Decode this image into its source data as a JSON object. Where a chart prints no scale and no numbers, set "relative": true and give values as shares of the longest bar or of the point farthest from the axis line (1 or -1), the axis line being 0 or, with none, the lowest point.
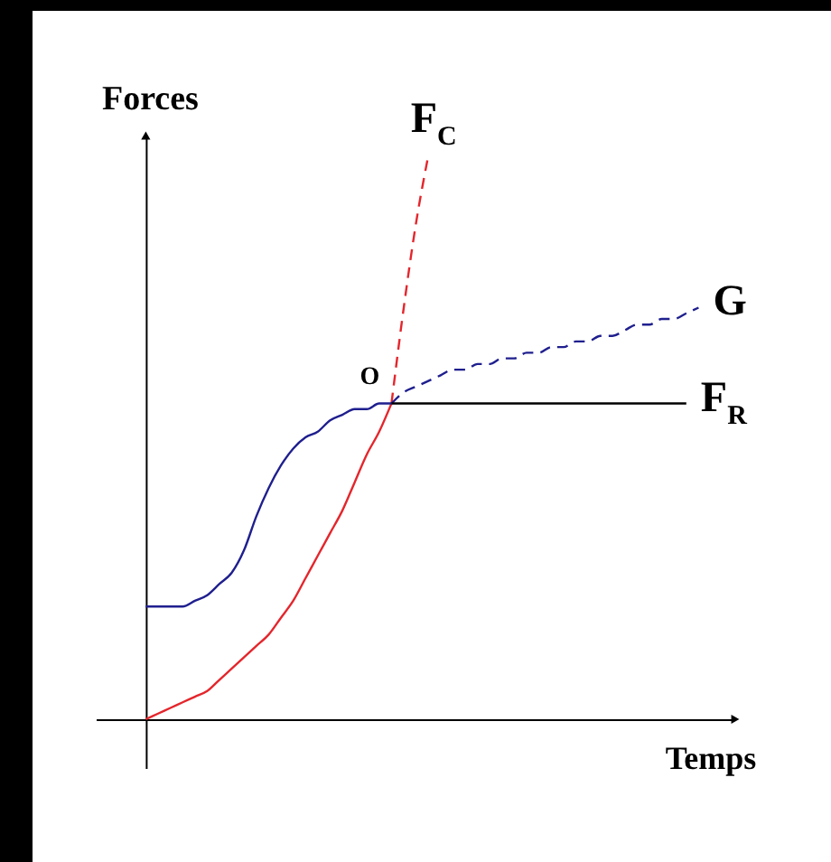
{
  "chart_data": {
    "type": "line",
    "relative": true,
    "xlabel": "Temps",
    "ylabel": "Forces",
    "line_style": "solid",
    "categories": [
      null,
      null,
      null,
      null,
      null,
      null,
      null,
      null,
      null,
      null,
      null,
      null,
      null,
      null,
      null,
      null,
      null,
      null,
      null,
      null,
      null,
      null,
      null,
      null,
      null,
      null,
      null,
      null,
      null,
      null,
      null,
      null,
      null,
      null,
      null,
      null,
      null,
      null,
      null,
      null,
      null,
      null,
      null,
      null,
      null,
      null
    ],
    "series": [
      {
        "color": "#e4262c",
        "values": [
          0,
          0.01,
          0.02,
          0.03,
          0.04,
          0.05,
          0.07,
          0.09,
          0.11,
          0.13,
          0.15,
          0.18,
          0.21,
          0.25,
          0.29,
          0.33,
          0.37,
          0.42,
          0.47,
          0.51,
          0.56,
          null,
          null,
          null,
          null,
          null,
          null,
          null,
          null,
          null,
          null,
          null,
          null,
          null,
          null,
          null,
          null,
          null,
          null,
          null,
          null,
          null,
          null,
          null,
          null,
          null
        ]
      },
      {
        "name": "F$_{C}$",
        "color": "#e4262c",
        "line_style": "dashed",
        "values": [
          null,
          null,
          null,
          null,
          null,
          null,
          null,
          null,
          null,
          null,
          null,
          null,
          null,
          null,
          null,
          null,
          null,
          null,
          null,
          null,
          0.56,
          0.73,
          0.88,
          1,
          null,
          null,
          null,
          null,
          null,
          null,
          null,
          null,
          null,
          null,
          null,
          null,
          null,
          null,
          null,
          null,
          null,
          null,
          null,
          null,
          null,
          null
        ]
      },
      {
        "color": "#1f1f8f",
        "values": [
          0.2,
          0.2,
          0.2,
          0.2,
          0.21,
          0.22,
          0.24,
          0.26,
          0.3,
          0.36,
          0.41,
          0.45,
          0.48,
          0.5,
          0.51,
          0.53,
          0.54,
          0.55,
          0.55,
          0.56,
          0.56,
          null,
          null,
          null,
          null,
          null,
          null,
          null,
          null,
          null,
          null,
          null,
          null,
          null,
          null,
          null,
          null,
          null,
          null,
          null,
          null,
          null,
          null,
          null,
          null,
          null
        ]
      },
      {
        "name": "G",
        "color": "#1f1f8f",
        "line_style": "dashed",
        "values": [
          null,
          null,
          null,
          null,
          null,
          null,
          null,
          null,
          null,
          null,
          null,
          null,
          null,
          null,
          null,
          null,
          null,
          null,
          null,
          null,
          0.56,
          0.58,
          0.59,
          0.6,
          0.61,
          0.62,
          0.62,
          0.63,
          0.63,
          0.64,
          0.64,
          0.65,
          0.65,
          0.66,
          0.66,
          0.67,
          0.67,
          0.68,
          0.68,
          0.69,
          0.7,
          0.7,
          0.71,
          0.71,
          0.72,
          0.73
        ]
      },
      {
        "name": "F$_{R}$",
        "color": "#000000",
        "values": [
          null,
          null,
          null,
          null,
          null,
          null,
          null,
          null,
          null,
          null,
          null,
          null,
          null,
          null,
          null,
          null,
          null,
          null,
          null,
          null,
          0.56,
          0.56,
          0.56,
          0.56,
          0.56,
          0.56,
          0.56,
          0.56,
          0.56,
          0.56,
          0.56,
          0.56,
          0.56,
          0.56,
          0.56,
          0.56,
          0.56,
          0.56,
          0.56,
          0.56,
          0.56,
          0.56,
          0.56,
          0.56,
          0.56,
          null
        ]
      }
    ],
    "annotations": [
      {
        "text": "O",
        "y": 0.56
      }
    ]
  }
}
